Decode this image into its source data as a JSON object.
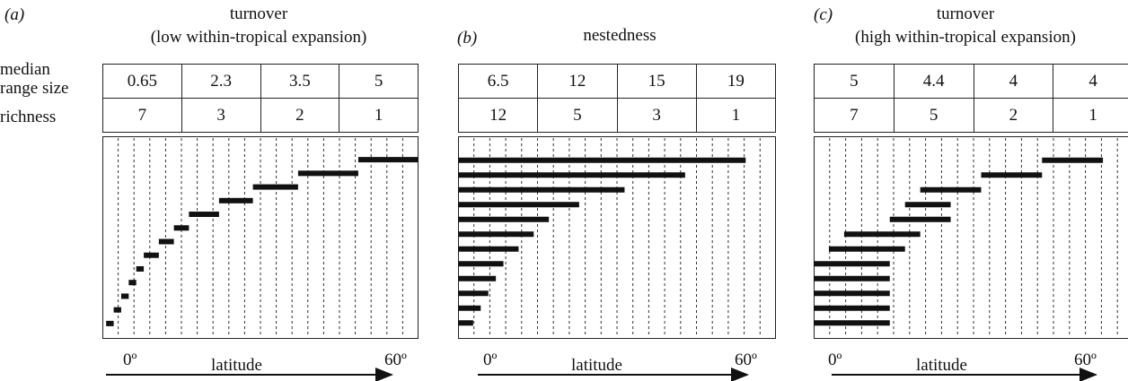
{
  "row_labels": {
    "median_line1": "median",
    "median_line2": "range size",
    "richness": "richness"
  },
  "panels": [
    {
      "letter": "(a)",
      "title_line1": "turnover",
      "title_line2": "(low within-tropical expansion)",
      "median_range_size": [
        "0.65",
        "2.3",
        "3.5",
        "5"
      ],
      "richness": [
        "7",
        "3",
        "2",
        "1"
      ],
      "x_left": "0º",
      "x_mid": "latitude",
      "x_right": "60º",
      "ranges": [
        [
          0.5,
          1.5
        ],
        [
          1.5,
          2.5
        ],
        [
          2.5,
          3.5
        ],
        [
          3.5,
          4.5
        ],
        [
          4.5,
          5.5
        ],
        [
          5.5,
          7.5
        ],
        [
          7.5,
          9.5
        ],
        [
          9.5,
          11.5
        ],
        [
          11.5,
          15.5
        ],
        [
          15.5,
          20
        ],
        [
          20,
          26
        ],
        [
          26,
          34
        ],
        [
          34,
          42
        ]
      ]
    },
    {
      "letter": "(b)",
      "title_line1": "nestedness",
      "title_line2": "",
      "median_range_size": [
        "6.5",
        "12",
        "15",
        "19"
      ],
      "richness": [
        "12",
        "5",
        "3",
        "1"
      ],
      "x_left": "0º",
      "x_mid": "latitude",
      "x_right": "60º",
      "ranges": [
        [
          0,
          2
        ],
        [
          0,
          3
        ],
        [
          0,
          4
        ],
        [
          0,
          5
        ],
        [
          0,
          6
        ],
        [
          0,
          8
        ],
        [
          0,
          10
        ],
        [
          0,
          12
        ],
        [
          0,
          16
        ],
        [
          0,
          22
        ],
        [
          0,
          30
        ],
        [
          0,
          38
        ]
      ]
    },
    {
      "letter": "(c)",
      "title_line1": "turnover",
      "title_line2": "(high within-tropical expansion)",
      "median_range_size": [
        "5",
        "4.4",
        "4",
        "4"
      ],
      "richness": [
        "7",
        "5",
        "2",
        "1"
      ],
      "x_left": "0º",
      "x_mid": "latitude",
      "x_right": "60º",
      "ranges": [
        [
          0,
          10
        ],
        [
          0,
          10
        ],
        [
          0,
          10
        ],
        [
          0,
          10
        ],
        [
          0,
          10
        ],
        [
          2,
          12
        ],
        [
          4,
          14
        ],
        [
          10,
          18
        ],
        [
          12,
          18
        ],
        [
          14,
          22
        ],
        [
          22,
          30
        ],
        [
          30,
          38
        ]
      ]
    }
  ]
}
